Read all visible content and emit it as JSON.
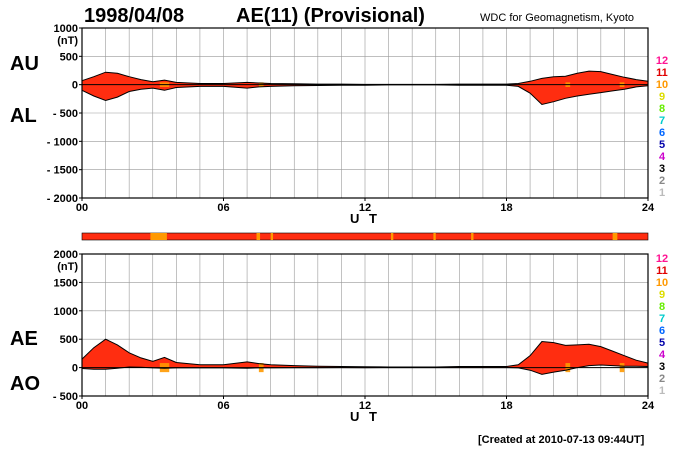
{
  "header": {
    "date": "1998/04/08",
    "title": "AE(11) (Provisional)",
    "source": "WDC for Geomagnetism, Kyoto"
  },
  "footer": {
    "created": "[Created at 2010-07-13 09:44UT]"
  },
  "legend": {
    "items": [
      {
        "label": "12",
        "color": "#ff1493"
      },
      {
        "label": "11",
        "color": "#e00000"
      },
      {
        "label": "10",
        "color": "#ff9900"
      },
      {
        "label": "9",
        "color": "#dddd00"
      },
      {
        "label": "8",
        "color": "#66ee00"
      },
      {
        "label": "7",
        "color": "#00cccc"
      },
      {
        "label": "6",
        "color": "#0066ff"
      },
      {
        "label": "5",
        "color": "#0000aa"
      },
      {
        "label": "4",
        "color": "#cc00cc"
      },
      {
        "label": "3",
        "color": "#000000"
      },
      {
        "label": "2",
        "color": "#888888"
      },
      {
        "label": "1",
        "color": "#bbbbbb"
      }
    ]
  },
  "colors": {
    "fill_main": "#ff2d10",
    "fill_alt": "#ff9900",
    "grid": "#999999"
  },
  "chart_data": [
    {
      "type": "area",
      "units_label": "(nT)",
      "upper_label": "AU",
      "lower_label": "AL",
      "xlabel": "U T",
      "xlim": [
        0,
        24
      ],
      "ylim": [
        -2000,
        1000
      ],
      "yticks": [
        1000,
        500,
        0,
        -500,
        -1000,
        -1500,
        -2000
      ],
      "ytick_labels": [
        "1000",
        "500",
        "0",
        "- 500",
        "- 1000",
        "- 1500",
        "- 2000"
      ],
      "xticks": [
        0,
        6,
        12,
        18,
        24
      ],
      "xtick_labels": [
        "00",
        "06",
        "12",
        "18",
        "24"
      ],
      "grid": true,
      "series": [
        {
          "name": "AU",
          "x": [
            0,
            0.5,
            1,
            1.5,
            2,
            2.5,
            3,
            3.5,
            4,
            5,
            6,
            7,
            7.5,
            8,
            9,
            10,
            11,
            12,
            13,
            14,
            15,
            16,
            17,
            18,
            18.5,
            19,
            19.5,
            20,
            20.5,
            21,
            21.5,
            22,
            22.5,
            23,
            23.5,
            24
          ],
          "values": [
            70,
            140,
            220,
            200,
            140,
            90,
            50,
            80,
            40,
            20,
            20,
            40,
            30,
            20,
            15,
            10,
            10,
            5,
            5,
            5,
            5,
            10,
            10,
            10,
            20,
            60,
            110,
            140,
            150,
            200,
            240,
            230,
            180,
            130,
            90,
            60
          ]
        },
        {
          "name": "AL",
          "x": [
            0,
            0.5,
            1,
            1.5,
            2,
            2.5,
            3,
            3.5,
            4,
            5,
            6,
            7,
            7.5,
            8,
            9,
            10,
            11,
            12,
            13,
            14,
            15,
            16,
            17,
            18,
            18.5,
            19,
            19.5,
            20,
            20.5,
            21,
            21.5,
            22,
            22.5,
            23,
            23.5,
            24
          ],
          "values": [
            -100,
            -200,
            -280,
            -220,
            -120,
            -80,
            -60,
            -100,
            -50,
            -30,
            -30,
            -60,
            -40,
            -30,
            -20,
            -15,
            -10,
            -10,
            -5,
            -5,
            -5,
            -10,
            -10,
            -10,
            -30,
            -150,
            -350,
            -300,
            -240,
            -200,
            -170,
            -140,
            -110,
            -80,
            -40,
            -20
          ]
        }
      ]
    },
    {
      "type": "area",
      "units_label": "(nT)",
      "upper_label": "AE",
      "lower_label": "AO",
      "xlabel": "U T",
      "xlim": [
        0,
        24
      ],
      "ylim": [
        -500,
        2000
      ],
      "yticks": [
        2000,
        1500,
        1000,
        500,
        0,
        -500
      ],
      "ytick_labels": [
        "2000",
        "1500",
        "1000",
        "500",
        "0",
        "- 500"
      ],
      "xticks": [
        0,
        6,
        12,
        18,
        24
      ],
      "xtick_labels": [
        "00",
        "06",
        "12",
        "18",
        "24"
      ],
      "grid": true,
      "series": [
        {
          "name": "AE",
          "x": [
            0,
            0.5,
            1,
            1.5,
            2,
            2.5,
            3,
            3.5,
            4,
            5,
            6,
            7,
            7.5,
            8,
            9,
            10,
            11,
            12,
            13,
            14,
            15,
            16,
            17,
            18,
            18.5,
            19,
            19.5,
            20,
            20.5,
            21,
            21.5,
            22,
            22.5,
            23,
            23.5,
            24
          ],
          "values": [
            150,
            350,
            500,
            400,
            260,
            170,
            110,
            180,
            90,
            50,
            50,
            100,
            70,
            50,
            35,
            25,
            20,
            15,
            10,
            10,
            10,
            20,
            20,
            20,
            50,
            210,
            460,
            440,
            390,
            400,
            410,
            370,
            290,
            210,
            130,
            80
          ]
        },
        {
          "name": "AO",
          "x": [
            0,
            0.5,
            1,
            1.5,
            2,
            2.5,
            3,
            3.5,
            4,
            5,
            6,
            7,
            7.5,
            8,
            9,
            10,
            11,
            12,
            13,
            14,
            15,
            16,
            17,
            18,
            18.5,
            19,
            19.5,
            20,
            20.5,
            21,
            21.5,
            22,
            22.5,
            23,
            23.5,
            24
          ],
          "values": [
            -15,
            -30,
            -30,
            -10,
            10,
            5,
            -5,
            -10,
            -5,
            -5,
            -5,
            -10,
            -5,
            -5,
            -3,
            -3,
            0,
            -3,
            0,
            0,
            0,
            0,
            0,
            0,
            -5,
            -45,
            -120,
            -80,
            -45,
            0,
            35,
            45,
            35,
            25,
            25,
            20
          ]
        }
      ]
    }
  ]
}
